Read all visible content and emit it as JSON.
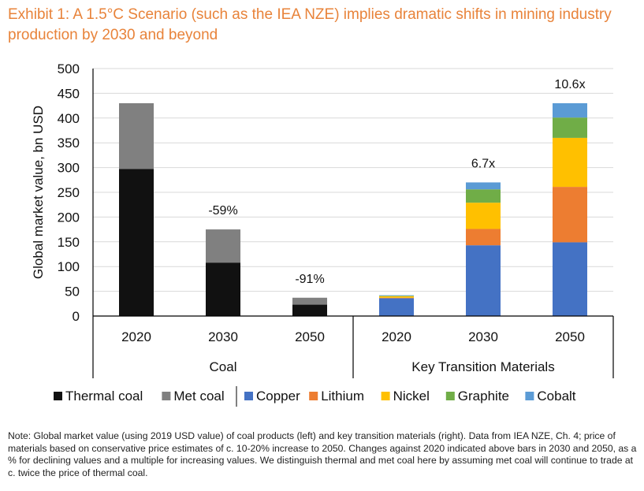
{
  "title": "Exhibit 1: A 1.5°C Scenario (such as the IEA NZE) implies dramatic shifts in mining industry production by 2030 and beyond",
  "note": "Note: Global market value (using 2019 USD value) of coal products (left) and key transition materials (right). Data from IEA NZE, Ch. 4; price of materials based on conservative price estimates of c. 10-20% increase to 2050. Changes against 2020 indicated above bars in 2030 and 2050, as a % for declining values and a multiple for increasing values. We distinguish thermal and met coal here by assuming met coal will continue to trade at c. twice the price of thermal coal.",
  "chart_data": {
    "type": "bar",
    "stacked": true,
    "ylabel": "Global market value, bn USD",
    "ylim": [
      0,
      500
    ],
    "yticks": [
      0,
      50,
      100,
      150,
      200,
      250,
      300,
      350,
      400,
      450,
      500
    ],
    "grid": true,
    "groups": [
      {
        "name": "Coal",
        "categories": [
          "2020",
          "2030",
          "2050"
        ]
      },
      {
        "name": "Key Transition Materials",
        "categories": [
          "2020",
          "2030",
          "2050"
        ]
      }
    ],
    "categories": [
      "2020",
      "2030",
      "2050",
      "2020",
      "2030",
      "2050"
    ],
    "series": [
      {
        "name": "Thermal coal",
        "color": "#111111",
        "values": [
          297,
          108,
          23,
          0,
          0,
          0
        ]
      },
      {
        "name": "Met coal",
        "color": "#808080",
        "values": [
          133,
          67,
          14,
          0,
          0,
          0
        ]
      },
      {
        "name": "Copper",
        "color": "#4472C4",
        "values": [
          0,
          0,
          0,
          36,
          143,
          149
        ]
      },
      {
        "name": "Lithium",
        "color": "#ED7D31",
        "values": [
          0,
          0,
          0,
          1,
          33,
          112
        ]
      },
      {
        "name": "Nickel",
        "color": "#FFC000",
        "values": [
          0,
          0,
          0,
          3,
          53,
          99
        ]
      },
      {
        "name": "Graphite",
        "color": "#70AD47",
        "values": [
          0,
          0,
          0,
          1,
          27,
          41
        ]
      },
      {
        "name": "Cobalt",
        "color": "#5B9BD5",
        "values": [
          0,
          0,
          0,
          1,
          14,
          29
        ]
      }
    ],
    "annotations": [
      "",
      "-59%",
      "-91%",
      "",
      "6.7x",
      "10.6x"
    ],
    "legend": "bottom"
  }
}
